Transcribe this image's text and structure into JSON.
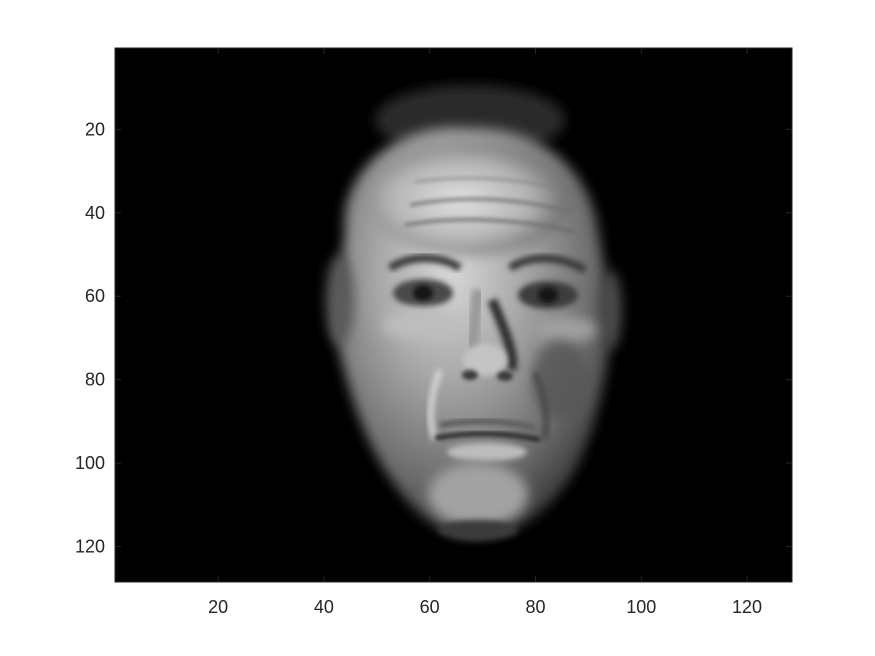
{
  "chart_data": {
    "type": "heatmap",
    "title": "",
    "xlabel": "",
    "ylabel": "",
    "colormap": "gray",
    "image_size": [
      128,
      128
    ],
    "xlim": [
      0.5,
      128.5
    ],
    "ylim": [
      0.5,
      128.5
    ],
    "y_direction": "reverse",
    "xticks": [
      20,
      40,
      60,
      80,
      100,
      120
    ],
    "yticks": [
      20,
      40,
      60,
      80,
      100,
      120
    ],
    "xtick_labels": [
      "20",
      "40",
      "60",
      "80",
      "100",
      "120"
    ],
    "ytick_labels": [
      "20",
      "40",
      "60",
      "80",
      "100",
      "120"
    ],
    "content": "grayscale face image"
  },
  "colors": {
    "background": "#ffffff",
    "image_background": "#000000",
    "axis": "#262626",
    "tick_text": "#262626"
  }
}
